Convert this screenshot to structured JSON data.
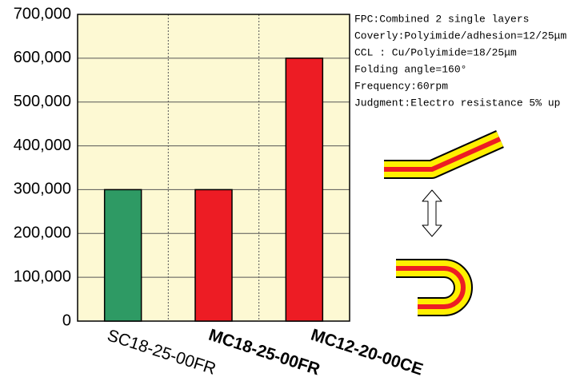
{
  "chart_data": {
    "type": "bar",
    "categories": [
      "SC18-25-00FR",
      "MC18-25-00FR",
      "MC12-20-00CE"
    ],
    "values": [
      300000,
      300000,
      600000
    ],
    "colors": [
      "#2e9a64",
      "#ed1c24",
      "#ed1c24"
    ],
    "ylim": [
      0,
      700000
    ],
    "yticks": [
      0,
      {
        "value": 100000,
        "label": "100,000"
      },
      {
        "value": 200000,
        "label": "200,000"
      },
      {
        "value": 300000,
        "label": "300,000"
      },
      {
        "value": 400000,
        "label": "400,000"
      },
      {
        "value": 500000,
        "label": "500,000"
      },
      {
        "value": 600000,
        "label": "600,000"
      },
      {
        "value": 700000,
        "label": "700,000"
      }
    ],
    "grid": true,
    "annotations": [
      "FPC:Combined 2 single layers",
      "Coverly:Polyimide/adhesion=12/25μm",
      "CCL : Cu/Polyimide=18/25μm",
      "Folding angle=160°",
      "Frequency:60rpm",
      "Judgment:Electro resistance 5% up"
    ]
  }
}
